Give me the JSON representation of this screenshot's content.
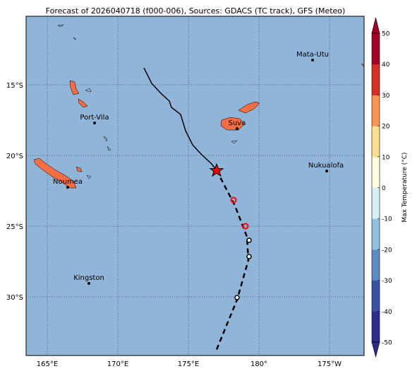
{
  "title": "Forecast of 2026040718 (f000-006), Sources: GDACS (TC track), GFS (Meteo)",
  "lon_labels": [
    "165°E",
    "170°E",
    "175°E",
    "180°",
    "175°W"
  ],
  "lat_labels": [
    "15°S",
    "20°S",
    "25°S",
    "30°S"
  ],
  "places": [
    "Mata-Utu",
    "Suva",
    "Port-Vila",
    "Nukualofa",
    "Noumea",
    "Kingston"
  ],
  "colorbar": {
    "label": "Max Temperature (°C)",
    "lim": [
      -50,
      50
    ],
    "ticks": [
      50,
      40,
      30,
      20,
      10,
      0,
      -10,
      -20,
      -30,
      -40,
      -50
    ],
    "colors": [
      "#2c2d8c",
      "#3953a4",
      "#5b8dc4",
      "#8fc1de",
      "#d8eef5",
      "#fffde0",
      "#fedc90",
      "#f99455",
      "#d73027",
      "#a50026"
    ]
  }
}
